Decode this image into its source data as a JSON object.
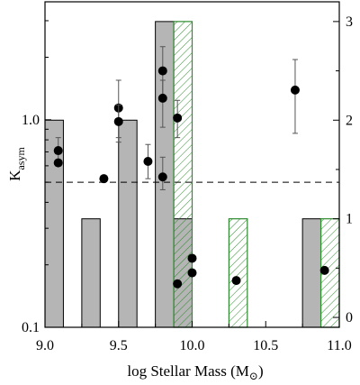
{
  "chart_data": {
    "type": "bar",
    "title": "",
    "xlabel": "log Stellar Mass (M",
    "xlabel_sub": "⊙",
    "xlabel_close": ")",
    "ylabel_main": "K",
    "ylabel_sub": "asym",
    "xlim": [
      9.0,
      11.0
    ],
    "xticks": [
      9.0,
      9.5,
      10.0,
      10.5,
      11.0
    ],
    "xtick_labels": [
      "9.0",
      "9.5",
      "10.0",
      "10.5",
      "11.0"
    ],
    "y_left": {
      "scale": "log",
      "lim": [
        0.1,
        3.7
      ],
      "ticks": [
        0.1,
        1.0
      ],
      "tick_labels": [
        "0.1",
        "1.0"
      ]
    },
    "y_right": {
      "scale": "linear",
      "lim": [
        -0.1,
        3.2
      ],
      "ticks": [
        0,
        1,
        2,
        3
      ],
      "tick_labels": [
        "0",
        "1",
        "2",
        "3"
      ]
    },
    "threshold": 0.5,
    "bin_width": 0.125,
    "series": [
      {
        "style": "gray-filled",
        "color": "#b5b5b5",
        "bins": [
          {
            "x": 9.0625,
            "count": 2
          },
          {
            "x": 9.1875,
            "count": 0
          },
          {
            "x": 9.3125,
            "count": 1
          },
          {
            "x": 9.4375,
            "count": 0
          },
          {
            "x": 9.5625,
            "count": 2
          },
          {
            "x": 9.6875,
            "count": 0
          },
          {
            "x": 9.8125,
            "count": 3
          },
          {
            "x": 9.9375,
            "count": 1
          },
          {
            "x": 10.0625,
            "count": 0
          },
          {
            "x": 10.1875,
            "count": 0
          },
          {
            "x": 10.3125,
            "count": 0
          },
          {
            "x": 10.4375,
            "count": 0
          },
          {
            "x": 10.5625,
            "count": 0
          },
          {
            "x": 10.6875,
            "count": 0
          },
          {
            "x": 10.8125,
            "count": 1
          },
          {
            "x": 10.9375,
            "count": 0
          }
        ]
      },
      {
        "style": "green-hatched",
        "color": "#2e8b2e",
        "bins": [
          {
            "x": 9.9375,
            "count": 3
          },
          {
            "x": 10.3125,
            "count": 1
          },
          {
            "x": 10.9375,
            "count": 1
          }
        ]
      }
    ],
    "points": [
      {
        "x": 9.09,
        "y": 0.71,
        "err": [
          0.63,
          0.82
        ]
      },
      {
        "x": 9.09,
        "y": 0.62
      },
      {
        "x": 9.4,
        "y": 0.52
      },
      {
        "x": 9.5,
        "y": 1.14,
        "err": [
          0.78,
          1.55
        ]
      },
      {
        "x": 9.5,
        "y": 0.98,
        "err": [
          0.82,
          1.18
        ]
      },
      {
        "x": 9.7,
        "y": 0.63,
        "err": [
          0.52,
          0.76
        ]
      },
      {
        "x": 9.8,
        "y": 1.72,
        "err": [
          1.25,
          2.25
        ]
      },
      {
        "x": 9.8,
        "y": 1.27,
        "err": [
          0.92,
          1.55
        ]
      },
      {
        "x": 9.8,
        "y": 0.53,
        "err": [
          0.46,
          0.66
        ]
      },
      {
        "x": 9.9,
        "y": 1.02,
        "err": [
          0.82,
          1.24
        ]
      },
      {
        "x": 9.9,
        "y": 0.162
      },
      {
        "x": 10.0,
        "y": 0.215
      },
      {
        "x": 10.0,
        "y": 0.183
      },
      {
        "x": 10.3,
        "y": 0.168
      },
      {
        "x": 10.7,
        "y": 1.39,
        "err": [
          0.86,
          1.95
        ]
      },
      {
        "x": 10.9,
        "y": 0.188
      }
    ]
  }
}
